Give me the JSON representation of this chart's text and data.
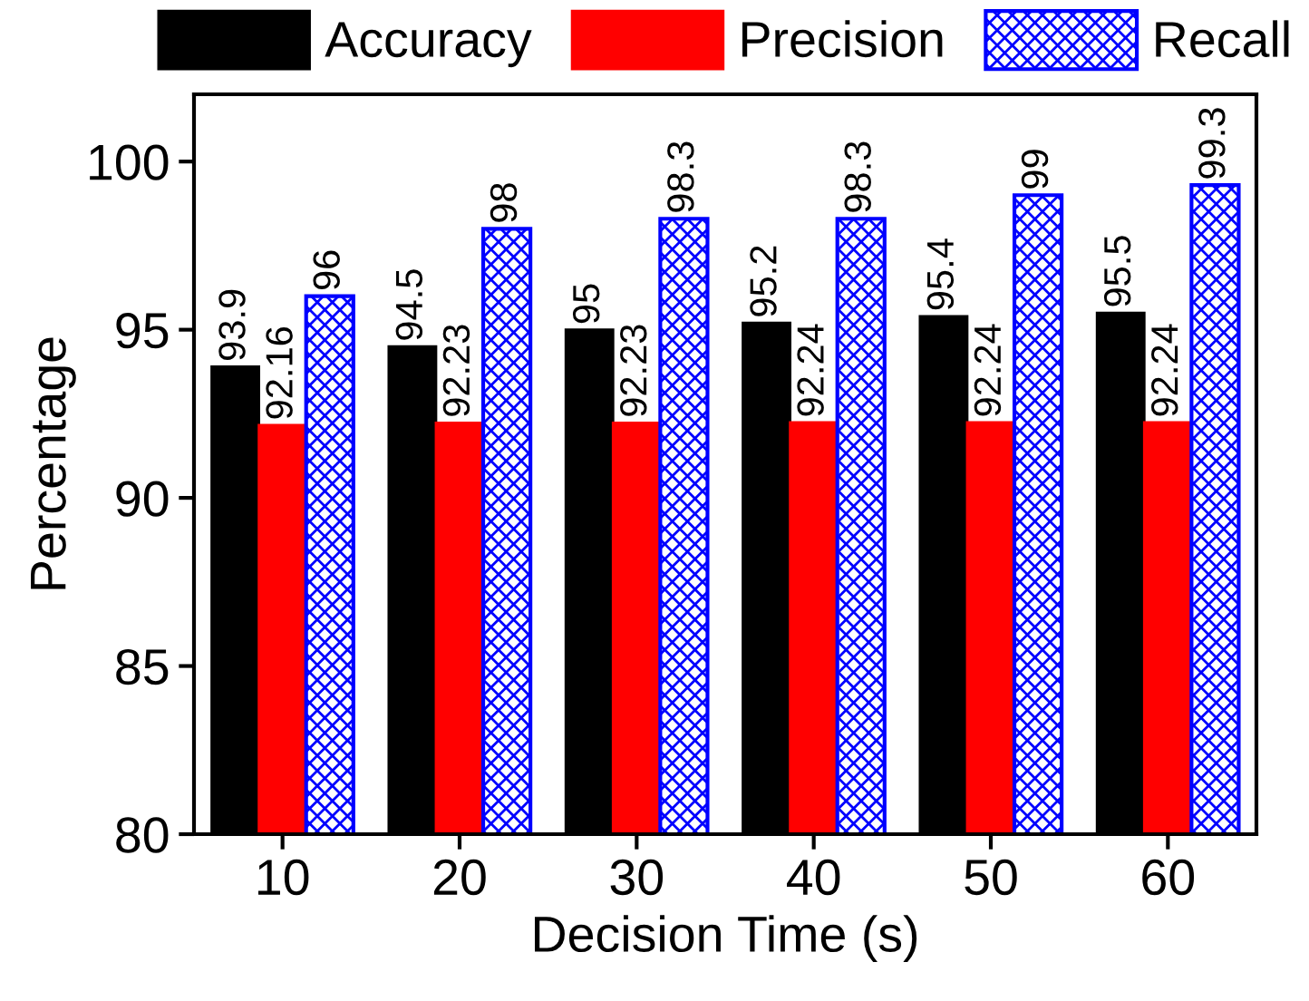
{
  "chart_data": {
    "type": "bar",
    "xlabel": "Decision Time (s)",
    "ylabel": "Percentage",
    "categories": [
      "10",
      "20",
      "30",
      "40",
      "50",
      "60"
    ],
    "series": [
      {
        "name": "Accuracy",
        "color": "#000000",
        "values": [
          93.9,
          94.5,
          95,
          95.2,
          95.4,
          95.5
        ]
      },
      {
        "name": "Precision",
        "color": "#ff0000",
        "values": [
          92.16,
          92.23,
          92.23,
          92.24,
          92.24,
          92.24
        ]
      },
      {
        "name": "Recall",
        "color": "#0000ff",
        "values": [
          96,
          98,
          98.3,
          98.3,
          99,
          99.3
        ]
      }
    ],
    "ylim": [
      80,
      102
    ],
    "yticks": [
      80,
      85,
      90,
      95,
      100
    ],
    "data_labels": true,
    "legend": "top",
    "grid": false
  }
}
